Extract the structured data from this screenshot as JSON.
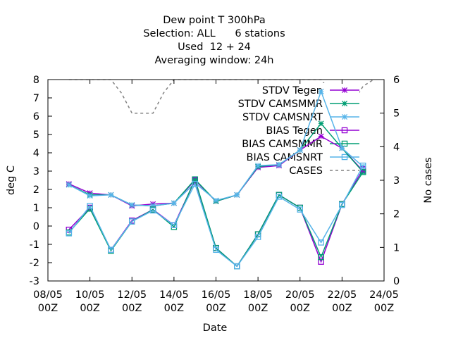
{
  "chart_data": {
    "type": "line",
    "title_lines": [
      "Dew point T 300hPa",
      "Selection: ALL      6 stations",
      "Used  12 + 24",
      "Averaging window: 24h"
    ],
    "xlabel": "Date",
    "ylabel": "deg C",
    "y2label": "No cases",
    "xlim": [
      "2023-05-08",
      "2023-05-24"
    ],
    "ylim": [
      -3,
      8
    ],
    "y2lim": [
      0,
      6
    ],
    "x_ticks": [
      {
        "date": "2023-05-08",
        "label_top": "08/05",
        "label_bottom": "00Z"
      },
      {
        "date": "2023-05-10",
        "label_top": "10/05",
        "label_bottom": "00Z"
      },
      {
        "date": "2023-05-12",
        "label_top": "12/05",
        "label_bottom": "00Z"
      },
      {
        "date": "2023-05-14",
        "label_top": "14/05",
        "label_bottom": "00Z"
      },
      {
        "date": "2023-05-16",
        "label_top": "16/05",
        "label_bottom": "00Z"
      },
      {
        "date": "2023-05-18",
        "label_top": "18/05",
        "label_bottom": "00Z"
      },
      {
        "date": "2023-05-20",
        "label_top": "20/05",
        "label_bottom": "00Z"
      },
      {
        "date": "2023-05-22",
        "label_top": "22/05",
        "label_bottom": "00Z"
      },
      {
        "date": "2023-05-24",
        "label_top": "24/05",
        "label_bottom": "00Z"
      }
    ],
    "y_ticks": [
      "-3",
      "-2",
      "-1",
      "0",
      "1",
      "2",
      "3",
      "4",
      "5",
      "6",
      "7",
      "8"
    ],
    "y2_ticks": [
      "0",
      "1",
      "2",
      "3",
      "4",
      "5",
      "6"
    ],
    "grid": false,
    "legend_position": "top-right",
    "x": [
      "2023-05-09",
      "2023-05-10",
      "2023-05-11",
      "2023-05-12",
      "2023-05-13",
      "2023-05-14",
      "2023-05-15",
      "2023-05-16",
      "2023-05-17",
      "2023-05-18",
      "2023-05-19",
      "2023-05-20",
      "2023-05-21",
      "2023-05-22",
      "2023-05-23"
    ],
    "series": [
      {
        "name": "STDV Tegen",
        "axis": "y1",
        "color": "#9400d3",
        "marker": "star",
        "dash": false,
        "values": [
          2.3,
          1.8,
          1.7,
          1.1,
          1.2,
          1.25,
          2.5,
          1.35,
          1.7,
          3.2,
          3.3,
          4.15,
          4.9,
          4.25,
          3.0
        ]
      },
      {
        "name": "STDV CAMSMMR",
        "axis": "y1",
        "color": "#009e73",
        "marker": "star",
        "dash": false,
        "values": [
          2.25,
          1.7,
          1.7,
          1.15,
          1.1,
          1.25,
          2.55,
          1.35,
          1.7,
          3.25,
          3.35,
          4.15,
          5.6,
          4.25,
          2.95
        ]
      },
      {
        "name": "STDV CAMSNRT",
        "axis": "y1",
        "color": "#56b4e9",
        "marker": "star",
        "dash": false,
        "values": [
          2.25,
          1.65,
          1.7,
          1.15,
          1.1,
          1.25,
          2.35,
          1.4,
          1.7,
          3.3,
          3.35,
          4.15,
          7.35,
          4.25,
          3.25
        ]
      },
      {
        "name": "BIAS Tegen",
        "axis": "y1",
        "color": "#9400d3",
        "marker": "square",
        "dash": false,
        "values": [
          -0.2,
          1.0,
          -1.3,
          0.3,
          0.9,
          0.05,
          2.5,
          -1.2,
          -2.2,
          -0.45,
          1.7,
          1.0,
          -1.95,
          1.2,
          3.1
        ]
      },
      {
        "name": "BIAS CAMSMMR",
        "axis": "y1",
        "color": "#009e73",
        "marker": "square",
        "dash": false,
        "values": [
          -0.35,
          0.95,
          -1.35,
          0.25,
          0.9,
          -0.05,
          2.55,
          -1.2,
          -2.2,
          -0.45,
          1.7,
          1.0,
          -1.7,
          1.2,
          2.95
        ]
      },
      {
        "name": "BIAS CAMSNRT",
        "axis": "y1",
        "color": "#56b4e9",
        "marker": "square",
        "dash": false,
        "values": [
          -0.4,
          1.1,
          -1.3,
          0.25,
          0.85,
          0.05,
          2.3,
          -1.3,
          -2.2,
          -0.6,
          1.6,
          0.9,
          -0.9,
          1.15,
          3.3
        ]
      }
    ],
    "cases": {
      "name": "CASES",
      "axis": "y2",
      "color": "#808080",
      "dash": true,
      "x": [
        "2023-05-09",
        "2023-05-10",
        "2023-05-11",
        "2023-05-11T12:00",
        "2023-05-12",
        "2023-05-13",
        "2023-05-13T12:00",
        "2023-05-14",
        "2023-05-20",
        "2023-05-21",
        "2023-05-21T12:00",
        "2023-05-22",
        "2023-05-22T12:00",
        "2023-05-23",
        "2023-05-23T12:00"
      ],
      "values": [
        6,
        6,
        6,
        5.6,
        5,
        5,
        5.6,
        6,
        6,
        6,
        5.6,
        5,
        5.3,
        5.8,
        6
      ]
    }
  }
}
